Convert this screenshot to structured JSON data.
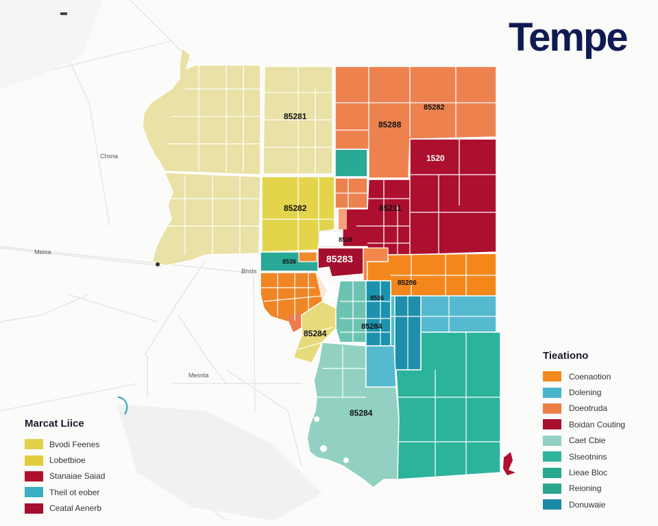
{
  "title": "Tempe",
  "zips": [
    "85281",
    "85288",
    "85282",
    "85282",
    "1520",
    "85211",
    "85283",
    "8528",
    "85286",
    "85284",
    "85284",
    "85284",
    "8536",
    "8536"
  ],
  "places": [
    "Chsna",
    "Meioa",
    "Bhsts",
    "Mesnta"
  ],
  "legend_left": {
    "title": "Marcat Liice",
    "items": [
      {
        "label": "Bvodi Feenes",
        "color": "#e2d14b"
      },
      {
        "label": "Lobetbioe",
        "color": "#e3cc3c"
      },
      {
        "label": "Stanaiae Saiad",
        "color": "#b0122c"
      },
      {
        "label": "Theil ot eober",
        "color": "#3aaec3"
      },
      {
        "label": "Ceatal Aenerb",
        "color": "#a50f2e"
      }
    ]
  },
  "legend_right": {
    "title": "Tieationo",
    "items": [
      {
        "label": "Coenaotion",
        "color": "#f28a1c"
      },
      {
        "label": "Dolening",
        "color": "#48b4ca"
      },
      {
        "label": "Doeotruda",
        "color": "#ed7f45"
      },
      {
        "label": "Boidan Couting",
        "color": "#a8112e"
      },
      {
        "label": "Caet Cbie",
        "color": "#92d1c1"
      },
      {
        "label": "Slseotnins",
        "color": "#2fb49e"
      },
      {
        "label": "Lieae Bloc",
        "color": "#27a98f"
      },
      {
        "label": "Reioning",
        "color": "#2aa48c"
      },
      {
        "label": "Donuwaie",
        "color": "#1b8aa6"
      }
    ]
  },
  "colors": {
    "pale_yellow": "#e8e1a3",
    "yellow": "#e3d44c",
    "orange": "#ef8434",
    "orange_bright": "#f4871c",
    "salmon": "#ec7b4e",
    "crimson": "#b00f30",
    "teal": "#2db29a",
    "light_teal": "#8fd0c0",
    "light_blue": "#55b9cf",
    "dark_blue": "#1c8ea9",
    "navy": "#101b52"
  }
}
